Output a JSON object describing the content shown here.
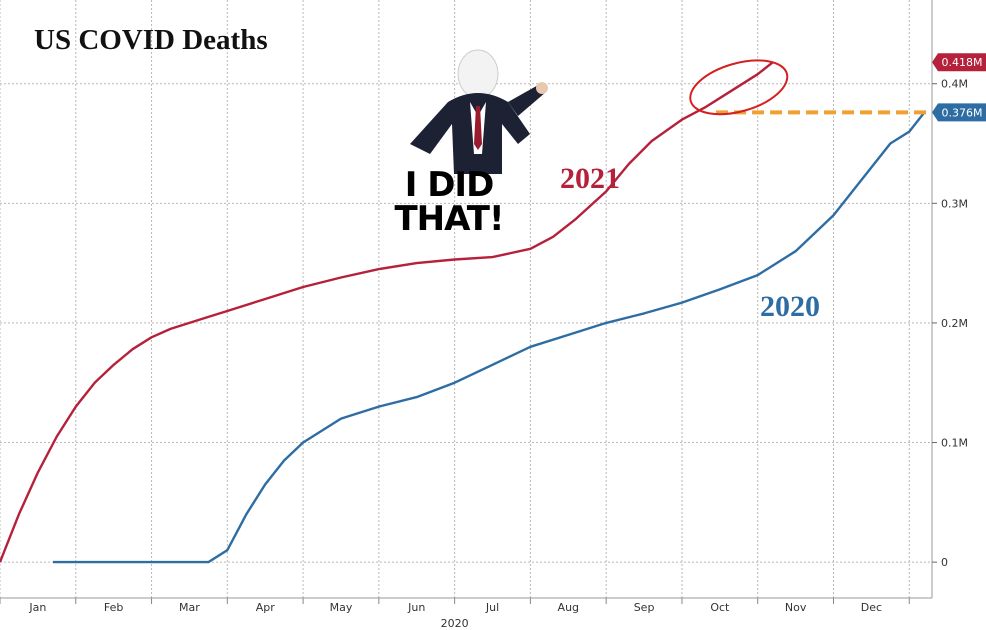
{
  "chart_data": {
    "type": "line",
    "title": "US COVID Deaths",
    "xlabel": "2020",
    "ylabel": "",
    "x_ticks": [
      "Jan",
      "Feb",
      "Mar",
      "Apr",
      "May",
      "Jun",
      "Jul",
      "Aug",
      "Sep",
      "Oct",
      "Nov",
      "Dec"
    ],
    "y_ticks": [
      "0",
      "0.1M",
      "0.2M",
      "0.3M",
      "0.4M"
    ],
    "y_tick_values": [
      0,
      0.1,
      0.2,
      0.3,
      0.4
    ],
    "ylim": [
      -0.03,
      0.47
    ],
    "x_unit": "month of year (1 = Jan 1, 13 = Dec 31)",
    "xlim": [
      1,
      13.3
    ],
    "grid": true,
    "series": [
      {
        "name": "2021",
        "color": "#b5213a",
        "last_value_label": "0.418M",
        "x": [
          1.0,
          1.25,
          1.5,
          1.75,
          2.0,
          2.25,
          2.5,
          2.75,
          3.0,
          3.25,
          3.5,
          3.75,
          4.0,
          4.5,
          5.0,
          5.5,
          6.0,
          6.5,
          7.0,
          7.5,
          8.0,
          8.3,
          8.6,
          9.0,
          9.3,
          9.6,
          10.0,
          10.3,
          10.6,
          11.0,
          11.2
        ],
        "values": [
          0.0,
          0.04,
          0.075,
          0.105,
          0.13,
          0.15,
          0.165,
          0.178,
          0.188,
          0.195,
          0.2,
          0.205,
          0.21,
          0.22,
          0.23,
          0.238,
          0.245,
          0.25,
          0.253,
          0.255,
          0.262,
          0.272,
          0.287,
          0.31,
          0.333,
          0.352,
          0.37,
          0.38,
          0.392,
          0.408,
          0.418
        ]
      },
      {
        "name": "2020",
        "color": "#2e6da4",
        "last_value_label": "0.376M",
        "x": [
          1.7,
          2.0,
          2.5,
          3.0,
          3.5,
          3.75,
          4.0,
          4.25,
          4.5,
          4.75,
          5.0,
          5.5,
          6.0,
          6.5,
          7.0,
          7.5,
          8.0,
          8.5,
          9.0,
          9.5,
          10.0,
          10.5,
          11.0,
          11.25,
          11.5,
          11.75,
          12.0,
          12.25,
          12.5,
          12.75,
          13.0,
          13.2
        ],
        "values": [
          0.0,
          0.0,
          0.0,
          0.0,
          0.0,
          0.0,
          0.01,
          0.04,
          0.065,
          0.085,
          0.1,
          0.12,
          0.13,
          0.138,
          0.15,
          0.165,
          0.18,
          0.19,
          0.2,
          0.208,
          0.217,
          0.228,
          0.24,
          0.25,
          0.26,
          0.275,
          0.29,
          0.31,
          0.33,
          0.35,
          0.36,
          0.376
        ]
      }
    ],
    "annotations": {
      "reference_line_value": 0.376,
      "reference_line_color": "#f0a030",
      "circle_color": "#d42020",
      "image_caption": "I DID\nTHAT!"
    }
  }
}
